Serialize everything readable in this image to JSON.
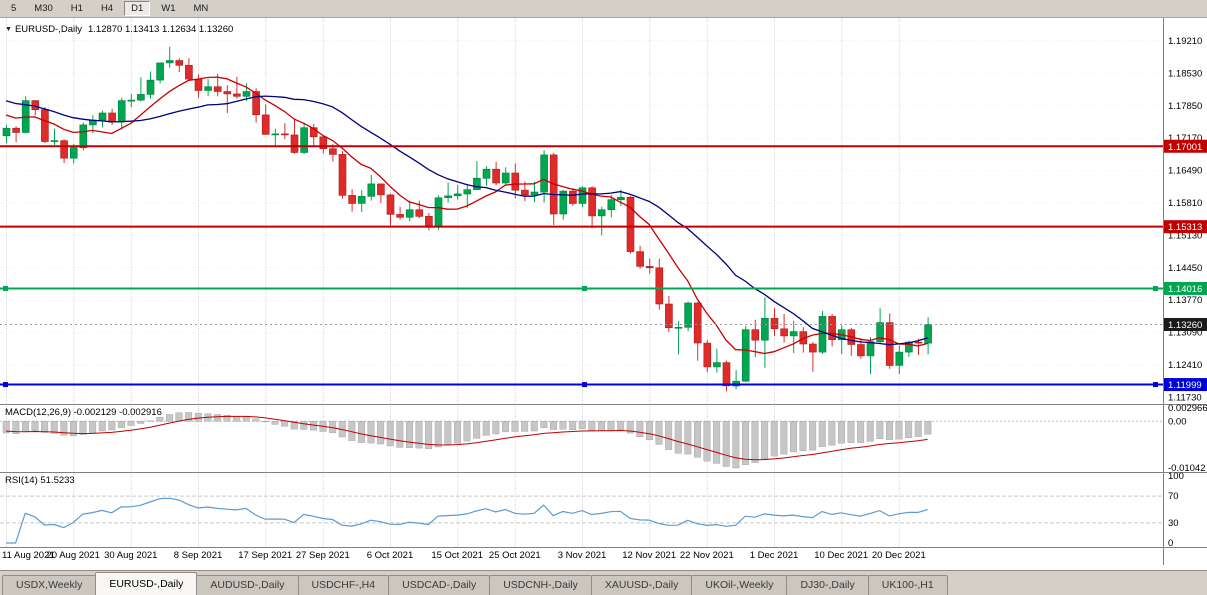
{
  "toolbar": {
    "timeframes": [
      "5",
      "M30",
      "H1",
      "H4",
      "D1",
      "W1",
      "MN"
    ],
    "active": "D1"
  },
  "chart_header": {
    "dropdown_icon": "▼",
    "symbol": "EURUSD-,Daily",
    "ohlc": "1.12870 1.13413 1.12634 1.13260"
  },
  "tabs": [
    {
      "label": "USDX,Weekly",
      "active": false
    },
    {
      "label": "EURUSD-,Daily",
      "active": true
    },
    {
      "label": "AUDUSD-,Daily",
      "active": false
    },
    {
      "label": "USDCHF-,H4",
      "active": false
    },
    {
      "label": "USDCAD-,Daily",
      "active": false
    },
    {
      "label": "USDCNH-,Daily",
      "active": false
    },
    {
      "label": "XAUUSD-,Daily",
      "active": false
    },
    {
      "label": "UKOil-,Weekly",
      "active": false
    },
    {
      "label": "DJ30-,Daily",
      "active": false
    },
    {
      "label": "UK100-,H1",
      "active": false
    }
  ],
  "chart_data": {
    "type": "candlestick",
    "symbol": "EURUSD-",
    "timeframe": "Daily",
    "last_ohlc": {
      "open": 1.1287,
      "high": 1.13413,
      "low": 1.12634,
      "close": 1.1326
    },
    "price_axis": {
      "visible_max": 1.19693,
      "visible_min": 1.11591,
      "ticks": [
        "1.19210",
        "1.18530",
        "1.17850",
        "1.17170",
        "1.16490",
        "1.15810",
        "1.15130",
        "1.14450",
        "1.13770",
        "1.13090",
        "1.12410",
        "1.11730"
      ]
    },
    "time_axis": [
      {
        "label": "11 Aug 2021",
        "index": 0
      },
      {
        "label": "20 Aug 2021",
        "index": 7
      },
      {
        "label": "30 Aug 2021",
        "index": 13
      },
      {
        "label": "8 Sep 2021",
        "index": 20
      },
      {
        "label": "17 Sep 2021",
        "index": 27
      },
      {
        "label": "27 Sep 2021",
        "index": 33
      },
      {
        "label": "6 Oct 2021",
        "index": 40
      },
      {
        "label": "15 Oct 2021",
        "index": 47
      },
      {
        "label": "25 Oct 2021",
        "index": 53
      },
      {
        "label": "3 Nov 2021",
        "index": 60
      },
      {
        "label": "12 Nov 2021",
        "index": 67
      },
      {
        "label": "22 Nov 2021",
        "index": 73
      },
      {
        "label": "1 Dec 2021",
        "index": 80
      },
      {
        "label": "10 Dec 2021",
        "index": 87
      },
      {
        "label": "20 Dec 2021",
        "index": 93
      }
    ],
    "candles": [
      [
        1.1722,
        1.1745,
        1.1706,
        1.1738
      ],
      [
        1.1738,
        1.1742,
        1.1709,
        1.1729
      ],
      [
        1.1729,
        1.1805,
        1.1727,
        1.1796
      ],
      [
        1.1796,
        1.1797,
        1.1765,
        1.1777
      ],
      [
        1.1777,
        1.1782,
        1.1707,
        1.171
      ],
      [
        1.171,
        1.1737,
        1.1703,
        1.1712
      ],
      [
        1.1712,
        1.1715,
        1.1665,
        1.1675
      ],
      [
        1.1675,
        1.1705,
        1.1664,
        1.1697
      ],
      [
        1.1697,
        1.175,
        1.1691,
        1.1745
      ],
      [
        1.1745,
        1.1765,
        1.1727,
        1.1755
      ],
      [
        1.1755,
        1.1775,
        1.174,
        1.177
      ],
      [
        1.177,
        1.1779,
        1.1745,
        1.1751
      ],
      [
        1.1751,
        1.1802,
        1.1735,
        1.1796
      ],
      [
        1.1796,
        1.181,
        1.1782,
        1.1797
      ],
      [
        1.1797,
        1.1845,
        1.1794,
        1.1809
      ],
      [
        1.1809,
        1.1857,
        1.18,
        1.1839
      ],
      [
        1.1839,
        1.1876,
        1.1832,
        1.1875
      ],
      [
        1.1875,
        1.1909,
        1.1865,
        1.188
      ],
      [
        1.188,
        1.1885,
        1.1856,
        1.187
      ],
      [
        1.187,
        1.1885,
        1.1837,
        1.1841
      ],
      [
        1.1841,
        1.1851,
        1.1802,
        1.1817
      ],
      [
        1.1817,
        1.1841,
        1.1805,
        1.1825
      ],
      [
        1.1825,
        1.1852,
        1.1805,
        1.1815
      ],
      [
        1.1815,
        1.1828,
        1.177,
        1.181
      ],
      [
        1.181,
        1.1846,
        1.18,
        1.1805
      ],
      [
        1.1805,
        1.1832,
        1.1795,
        1.1815
      ],
      [
        1.1815,
        1.1822,
        1.175,
        1.1766
      ],
      [
        1.1766,
        1.1788,
        1.1724,
        1.1725
      ],
      [
        1.1725,
        1.1737,
        1.17,
        1.1726
      ],
      [
        1.1726,
        1.1749,
        1.1715,
        1.1724
      ],
      [
        1.1724,
        1.1756,
        1.1684,
        1.1687
      ],
      [
        1.1687,
        1.175,
        1.1684,
        1.1739
      ],
      [
        1.1739,
        1.1747,
        1.1701,
        1.172
      ],
      [
        1.172,
        1.1722,
        1.1685,
        1.1695
      ],
      [
        1.1695,
        1.1705,
        1.1668,
        1.1683
      ],
      [
        1.1683,
        1.169,
        1.159,
        1.1597
      ],
      [
        1.1597,
        1.161,
        1.1563,
        1.158
      ],
      [
        1.158,
        1.1608,
        1.1562,
        1.1595
      ],
      [
        1.1595,
        1.164,
        1.1586,
        1.1621
      ],
      [
        1.1621,
        1.1622,
        1.1581,
        1.1598
      ],
      [
        1.1598,
        1.1601,
        1.1529,
        1.1557
      ],
      [
        1.1557,
        1.1573,
        1.1546,
        1.1551
      ],
      [
        1.1551,
        1.1586,
        1.1543,
        1.1567
      ],
      [
        1.1567,
        1.1586,
        1.1549,
        1.1553
      ],
      [
        1.1553,
        1.156,
        1.1524,
        1.153
      ],
      [
        1.153,
        1.1597,
        1.1525,
        1.1592
      ],
      [
        1.1592,
        1.1624,
        1.1582,
        1.1596
      ],
      [
        1.1596,
        1.1619,
        1.1588,
        1.16
      ],
      [
        1.16,
        1.1621,
        1.1571,
        1.1609
      ],
      [
        1.1609,
        1.1669,
        1.1609,
        1.1633
      ],
      [
        1.1633,
        1.1658,
        1.1617,
        1.1652
      ],
      [
        1.1652,
        1.1667,
        1.1618,
        1.1623
      ],
      [
        1.1623,
        1.1656,
        1.162,
        1.1644
      ],
      [
        1.1644,
        1.1664,
        1.1591,
        1.1608
      ],
      [
        1.1608,
        1.1626,
        1.1585,
        1.1598
      ],
      [
        1.1598,
        1.1626,
        1.1583,
        1.1604
      ],
      [
        1.1604,
        1.1692,
        1.1582,
        1.1682
      ],
      [
        1.1682,
        1.1686,
        1.1535,
        1.1558
      ],
      [
        1.1558,
        1.1609,
        1.1546,
        1.1606
      ],
      [
        1.1606,
        1.1612,
        1.1575,
        1.158
      ],
      [
        1.158,
        1.1616,
        1.1572,
        1.1613
      ],
      [
        1.1613,
        1.1616,
        1.1528,
        1.1554
      ],
      [
        1.1554,
        1.1573,
        1.1513,
        1.1567
      ],
      [
        1.1567,
        1.1598,
        1.1551,
        1.1588
      ],
      [
        1.1588,
        1.1609,
        1.1575,
        1.1593
      ],
      [
        1.1593,
        1.1596,
        1.1475,
        1.1479
      ],
      [
        1.1479,
        1.1491,
        1.1443,
        1.1448
      ],
      [
        1.1448,
        1.1464,
        1.1433,
        1.1445
      ],
      [
        1.1445,
        1.1464,
        1.1357,
        1.1369
      ],
      [
        1.1369,
        1.1386,
        1.131,
        1.1319
      ],
      [
        1.1319,
        1.1333,
        1.1263,
        1.132
      ],
      [
        1.132,
        1.1374,
        1.1312,
        1.1371
      ],
      [
        1.1371,
        1.1374,
        1.125,
        1.1287
      ],
      [
        1.1287,
        1.1294,
        1.1226,
        1.1237
      ],
      [
        1.1237,
        1.1275,
        1.1225,
        1.1246
      ],
      [
        1.1246,
        1.125,
        1.1186,
        1.1197
      ],
      [
        1.1197,
        1.123,
        1.119,
        1.1207
      ],
      [
        1.1207,
        1.1323,
        1.1205,
        1.1315
      ],
      [
        1.1315,
        1.1336,
        1.1258,
        1.1293
      ],
      [
        1.1293,
        1.1383,
        1.1235,
        1.1339
      ],
      [
        1.1339,
        1.136,
        1.1302,
        1.1317
      ],
      [
        1.1317,
        1.1348,
        1.1288,
        1.1302
      ],
      [
        1.1302,
        1.1334,
        1.1266,
        1.1311
      ],
      [
        1.1311,
        1.132,
        1.1267,
        1.1285
      ],
      [
        1.1285,
        1.1289,
        1.1227,
        1.1268
      ],
      [
        1.1268,
        1.1354,
        1.1264,
        1.1343
      ],
      [
        1.1343,
        1.1348,
        1.128,
        1.1294
      ],
      [
        1.1294,
        1.1324,
        1.1264,
        1.1315
      ],
      [
        1.1315,
        1.1319,
        1.126,
        1.1284
      ],
      [
        1.1284,
        1.1297,
        1.1254,
        1.126
      ],
      [
        1.126,
        1.1299,
        1.1222,
        1.129
      ],
      [
        1.129,
        1.136,
        1.1285,
        1.133
      ],
      [
        1.133,
        1.1349,
        1.1233,
        1.124
      ],
      [
        1.124,
        1.1282,
        1.1222,
        1.1268
      ],
      [
        1.1268,
        1.1292,
        1.1258,
        1.1289
      ],
      [
        1.1289,
        1.1296,
        1.1262,
        1.1287
      ],
      [
        1.1287,
        1.13413,
        1.12634,
        1.1326
      ]
    ],
    "ma_seed": [
      1.1865,
      1.1858,
      1.185,
      1.1843,
      1.1836,
      1.183,
      1.1824,
      1.1818,
      1.1812,
      1.1806,
      1.18,
      1.1795,
      1.179,
      1.1786,
      1.1782,
      1.1778,
      1.1775,
      1.1772,
      1.1769,
      1.1762,
      1.175
    ],
    "moving_averages": [
      {
        "name": "ma-fast",
        "period": 8,
        "color": "#C80000"
      },
      {
        "name": "ma-slow",
        "period": 20,
        "color": "#000080"
      }
    ],
    "horizontal_lines": [
      {
        "label": "1.17001",
        "value": 1.17001,
        "color": "#C00000",
        "handles": false
      },
      {
        "label": "1.15313",
        "value": 1.15313,
        "color": "#C00000",
        "handles": false
      },
      {
        "label": "1.14016",
        "value": 1.14016,
        "color": "#00A651",
        "handles": true
      },
      {
        "label": "1.11999",
        "value": 1.11999,
        "color": "#0000D8",
        "handles": true
      }
    ],
    "bid": {
      "label": "1.13260",
      "value": 1.1326,
      "color": "#1a1a1a"
    },
    "macd": {
      "label": "MACD(12,26,9) -0.002129 -0.002916",
      "fast": 12,
      "slow": 26,
      "signal": 9,
      "axis": [
        {
          "label": "0.002966",
          "value": 0.002966
        },
        {
          "label": "0.00",
          "value": 0
        },
        {
          "label": "-0.01042",
          "value": -0.01042
        }
      ],
      "histogram_color": "#C6C6C6",
      "signal_color": "#C00000"
    },
    "rsi": {
      "label": "RSI(14) 51.5233",
      "period": 14,
      "levels": [
        70,
        30
      ],
      "axis": [
        {
          "label": "100",
          "value": 100
        },
        {
          "label": "70",
          "value": 70
        },
        {
          "label": "30",
          "value": 30
        },
        {
          "label": "0",
          "value": 0
        }
      ],
      "color": "#5B9BD5"
    },
    "candle_colors": {
      "up": "#00A651",
      "down": "#E02B2B",
      "up_stroke": "#00803e",
      "down_stroke": "#a81d1d"
    }
  }
}
